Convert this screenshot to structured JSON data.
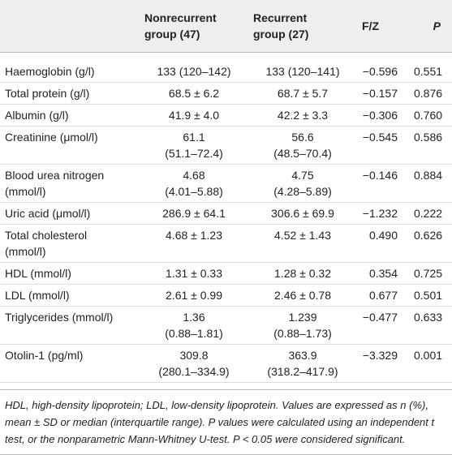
{
  "table": {
    "header": [
      "",
      "Nonrecurrent\ngroup (47)",
      "Recurrent\ngroup (27)",
      "F/Z",
      "P"
    ],
    "rows": [
      [
        "Haemoglobin (g/l)",
        "133 (120–142)",
        "133 (120–141)",
        "−0.596",
        "0.551"
      ],
      [
        "Total protein (g/l)",
        "68.5 ± 6.2",
        "68.7 ± 5.7",
        "−0.157",
        "0.876"
      ],
      [
        "Albumin (g/l)",
        "41.9 ± 4.0",
        "42.2 ± 3.3",
        "−0.306",
        "0.760"
      ],
      [
        "Creatinine (μmol/l)",
        "61.1\n(51.1–72.4)",
        "56.6\n(48.5–70.4)",
        "−0.545",
        "0.586"
      ],
      [
        "Blood urea nitrogen\n(mmol/l)",
        "4.68\n(4.01–5.88)",
        "4.75\n(4.28–5.89)",
        "−0.146",
        "0.884"
      ],
      [
        "Uric acid (μmol/l)",
        "286.9 ± 64.1",
        "306.6 ± 69.9",
        "−1.232",
        "0.222"
      ],
      [
        "Total cholesterol\n(mmol/l)",
        "4.68 ± 1.23",
        "4.52 ± 1.43",
        "0.490",
        "0.626"
      ],
      [
        "HDL (mmol/l)",
        "1.31 ± 0.33",
        "1.28 ± 0.32",
        "0.354",
        "0.725"
      ],
      [
        "LDL (mmol/l)",
        "2.61 ± 0.99",
        "2.46 ± 0.78",
        "0.677",
        "0.501"
      ],
      [
        "Triglycerides (mmol/l)",
        "1.36\n(0.88–1.81)",
        "1.239\n(0.88–1.73)",
        "−0.477",
        "0.633"
      ],
      [
        "Otolin-1 (pg/ml)",
        "309.8\n(280.1–334.9)",
        "363.9\n(318.2–417.9)",
        "−3.329",
        "0.001"
      ]
    ],
    "footnote": "HDL, high-density lipoprotein; LDL, low-density lipoprotein. Values are expressed as n (%), mean ± SD or median (interquartile range). P values were calculated using an independent t test, or the nonparametric Mann-Whitney U-test. P < 0.05 were considered significant."
  }
}
